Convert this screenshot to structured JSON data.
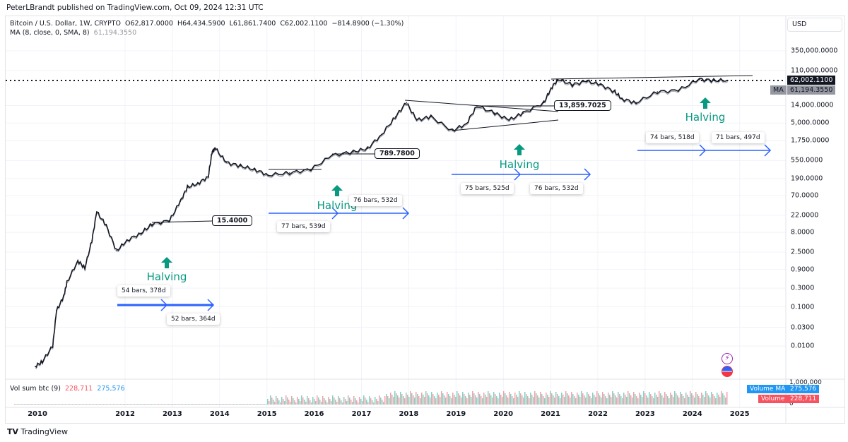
{
  "header": {
    "publisher": "PeterLBrandt published on TradingView.com, Oct 09, 2024 12:31 UTC"
  },
  "legend": {
    "symbol": "Bitcoin / U.S. Dollar, 1W, CRYPTO",
    "open": "O62,817.0000",
    "high": "H64,434.5900",
    "low": "L61,861.7400",
    "close": "C62,002.1100",
    "change": "−814.8900 (−1.30%)",
    "ma_label": "MA (8, close, 0, SMA, 8)",
    "ma_value": "61,194.3550"
  },
  "price_axis": {
    "currency": "USD",
    "last_price": "62,002.1100",
    "ma_tag": "MA",
    "ma_price": "61,194.3550"
  },
  "volume": {
    "label": "Vol sum btc (9)",
    "value": "228,711",
    "ma_value": "275,576",
    "axis_top": "1,000,000",
    "axis_zero": "0",
    "tag_ma": "Volume MA",
    "tag_vol": "Volume"
  },
  "annotations": {
    "callouts": [
      "15.4000",
      "789.7800",
      "13,859.7025"
    ],
    "halving": "Halving",
    "measures": [
      "54 bars, 378d",
      "52 bars, 364d",
      "77 bars, 539d",
      "76 bars, 532d",
      "75 bars, 525d",
      "76 bars, 532d",
      "74 bars, 518d",
      "71 bars, 497d"
    ]
  },
  "footer": {
    "brand": "TradingView"
  },
  "colors": {
    "candles": "#131722",
    "ma": "#9598a1",
    "halving": "#089981",
    "measure_arrow": "#2962ff",
    "vol_red": "#f7525f",
    "vol_blue": "#2196f3"
  },
  "chart_data": {
    "type": "line",
    "title": "Bitcoin / U.S. Dollar, 1W, CRYPTO",
    "yscale": "log",
    "ylim": [
      0.003,
      700000
    ],
    "xlim": [
      2010,
      2025.3
    ],
    "grid": true,
    "ytick_labels": [
      "350,000.0000",
      "110,000.0000",
      "14,000.0000",
      "5,000.0000",
      "1,750.0000",
      "550.0000",
      "190.0000",
      "70.0000",
      "22.0000",
      "8.0000",
      "2.5000",
      "0.9000",
      "0.3000",
      "0.1000",
      "0.0300",
      "0.0100"
    ],
    "yticks": [
      350000,
      110000,
      14000,
      5000,
      1750,
      550,
      190,
      70,
      22,
      8,
      2.5,
      0.9,
      0.3,
      0.1,
      0.03,
      0.01
    ],
    "xtick_labels": [
      "2010",
      "2012",
      "2013",
      "2014",
      "2015",
      "2016",
      "2017",
      "2018",
      "2019",
      "2020",
      "2021",
      "2022",
      "2023",
      "2024",
      "2025"
    ],
    "series": [
      {
        "x": [
          2010.1,
          2010.25,
          2010.47,
          2010.55,
          2010.7,
          2010.77,
          2011.0,
          2011.15,
          2011.3,
          2011.4,
          2011.6,
          2011.82,
          2012.04,
          2012.34,
          2012.57,
          2012.94,
          2013.17,
          2013.32,
          2013.54,
          2013.76,
          2013.84,
          2013.91,
          2014.14,
          2014.44,
          2014.74,
          2015.03,
          2015.48,
          2015.93,
          2016.38,
          2016.83,
          2017.13,
          2017.43,
          2017.72,
          2017.95,
          2018.17,
          2018.47,
          2018.92,
          2019.22,
          2019.44,
          2019.82,
          2020.12,
          2020.42,
          2020.86,
          2021.01,
          2021.16,
          2021.46,
          2021.76,
          2022.06,
          2022.36,
          2022.51,
          2022.81,
          2023.26,
          2023.7,
          2024.15,
          2024.45,
          2024.75
        ],
        "y": [
          0.003,
          0.004,
          0.01,
          0.08,
          0.18,
          0.42,
          1.5,
          1.0,
          5,
          27,
          12,
          2.7,
          5,
          7.7,
          13,
          16,
          50,
          115,
          142,
          215,
          915,
          1125,
          490,
          400,
          325,
          233,
          265,
          325,
          745,
          915,
          1125,
          2570,
          7250,
          16600,
          5960,
          7250,
          3190,
          4800,
          13700,
          9000,
          5960,
          9000,
          16600,
          38600,
          66000,
          47600,
          58600,
          47600,
          31400,
          20700,
          16600,
          31400,
          34100,
          66000,
          61100,
          62002
        ]
      }
    ]
  }
}
